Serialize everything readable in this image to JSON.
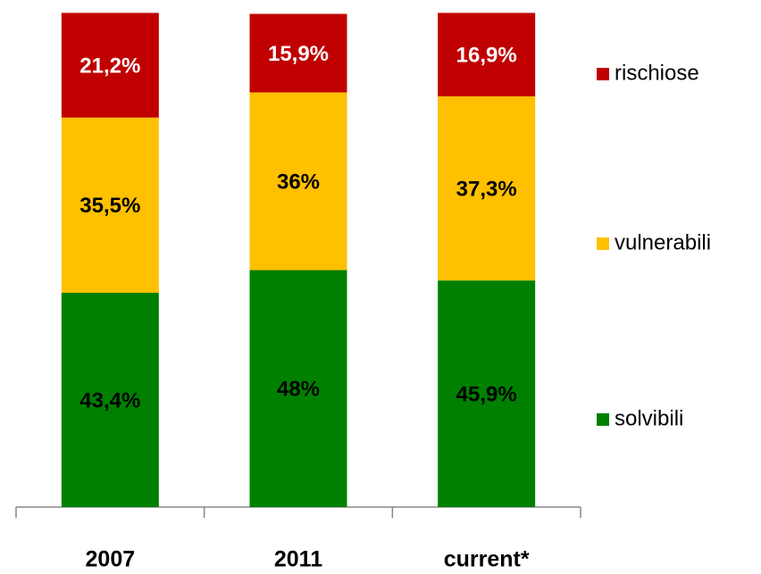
{
  "chart_data": {
    "type": "stacked-bar",
    "categories": [
      "2007",
      "2011",
      "current*"
    ],
    "ylim": [
      0,
      100
    ],
    "series": [
      {
        "name": "solvibili",
        "color": "#008000",
        "label_color": "#000000",
        "values": [
          43.4,
          48,
          45.9
        ],
        "value_labels": [
          "43,4%",
          "48%",
          "45,9%"
        ]
      },
      {
        "name": "vulnerabili",
        "color": "#ffc000",
        "label_color": "#000000",
        "values": [
          35.5,
          36,
          37.3
        ],
        "value_labels": [
          "35,5%",
          "36%",
          "37,3%"
        ]
      },
      {
        "name": "rischiose",
        "color": "#c00000",
        "label_color": "#ffffff",
        "values": [
          21.2,
          15.9,
          16.9
        ],
        "value_labels": [
          "21,2%",
          "15,9%",
          "16,9%"
        ]
      }
    ]
  }
}
